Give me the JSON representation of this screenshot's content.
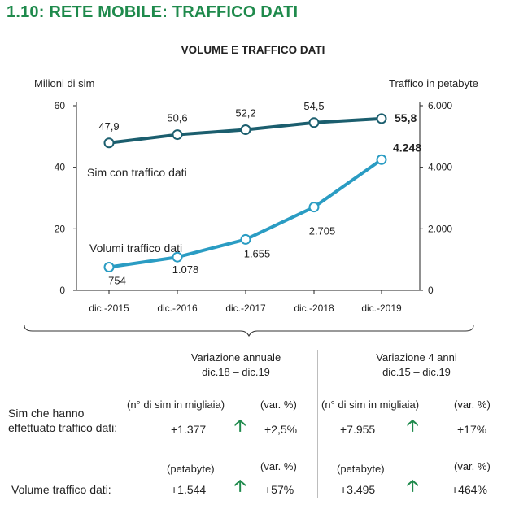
{
  "page_title": "1.10: RETE MOBILE: TRAFFICO DATI",
  "chart_data": {
    "type": "line",
    "title": "VOLUME E TRAFFICO DATI",
    "ylabel_left": "Milioni di sim",
    "ylabel_right": "Traffico in petabyte",
    "categories": [
      "dic.-2015",
      "dic.-2016",
      "dic.-2017",
      "dic.-2018",
      "dic.-2019"
    ],
    "yticks_left": [
      "0",
      "20",
      "40",
      "60"
    ],
    "yticks_right": [
      "0",
      "2.000",
      "4.000",
      "6.000"
    ],
    "ylim_left": [
      0,
      60
    ],
    "ylim_right": [
      0,
      6000
    ],
    "series": [
      {
        "name": "Sim con traffico dati",
        "axis": "left",
        "color": "#1b5e6e",
        "values": [
          47.9,
          50.6,
          52.2,
          54.5,
          55.8
        ],
        "labels": [
          "47,9",
          "50,6",
          "52,2",
          "54,5",
          "55,8"
        ]
      },
      {
        "name": "Volumi traffico dati",
        "axis": "right",
        "color": "#2a9cc3",
        "values": [
          754,
          1078,
          1655,
          2705,
          4248
        ],
        "labels": [
          "754",
          "1.078",
          "1.655",
          "2.705",
          "4.248"
        ]
      }
    ]
  },
  "table": {
    "header_annual_1": "Variazione annuale",
    "header_annual_2": "dic.18 – dic.19",
    "header_4y_1": "Variazione 4 anni",
    "header_4y_2": "dic.15 – dic.19",
    "row1_label_1": "Sim che hanno",
    "row1_label_2": "effettuato traffico dati:",
    "row1_unit": "(n° di  sim in migliaia)",
    "row1_var_unit": "(var. %)",
    "row1_annual_value": "+1.377",
    "row1_annual_pct": "+2,5%",
    "row1_4y_value": "+7.955",
    "row1_4y_pct": "+17%",
    "row2_label": "Volume traffico dati:",
    "row2_unit": "(petabyte)",
    "row2_var_unit": "(var. %)",
    "row2_annual_value": "+1.544",
    "row2_annual_pct": "+57%",
    "row2_4y_value": "+3.495",
    "row2_4y_pct": "+464%",
    "arrow_color": "#1f8a4c"
  }
}
